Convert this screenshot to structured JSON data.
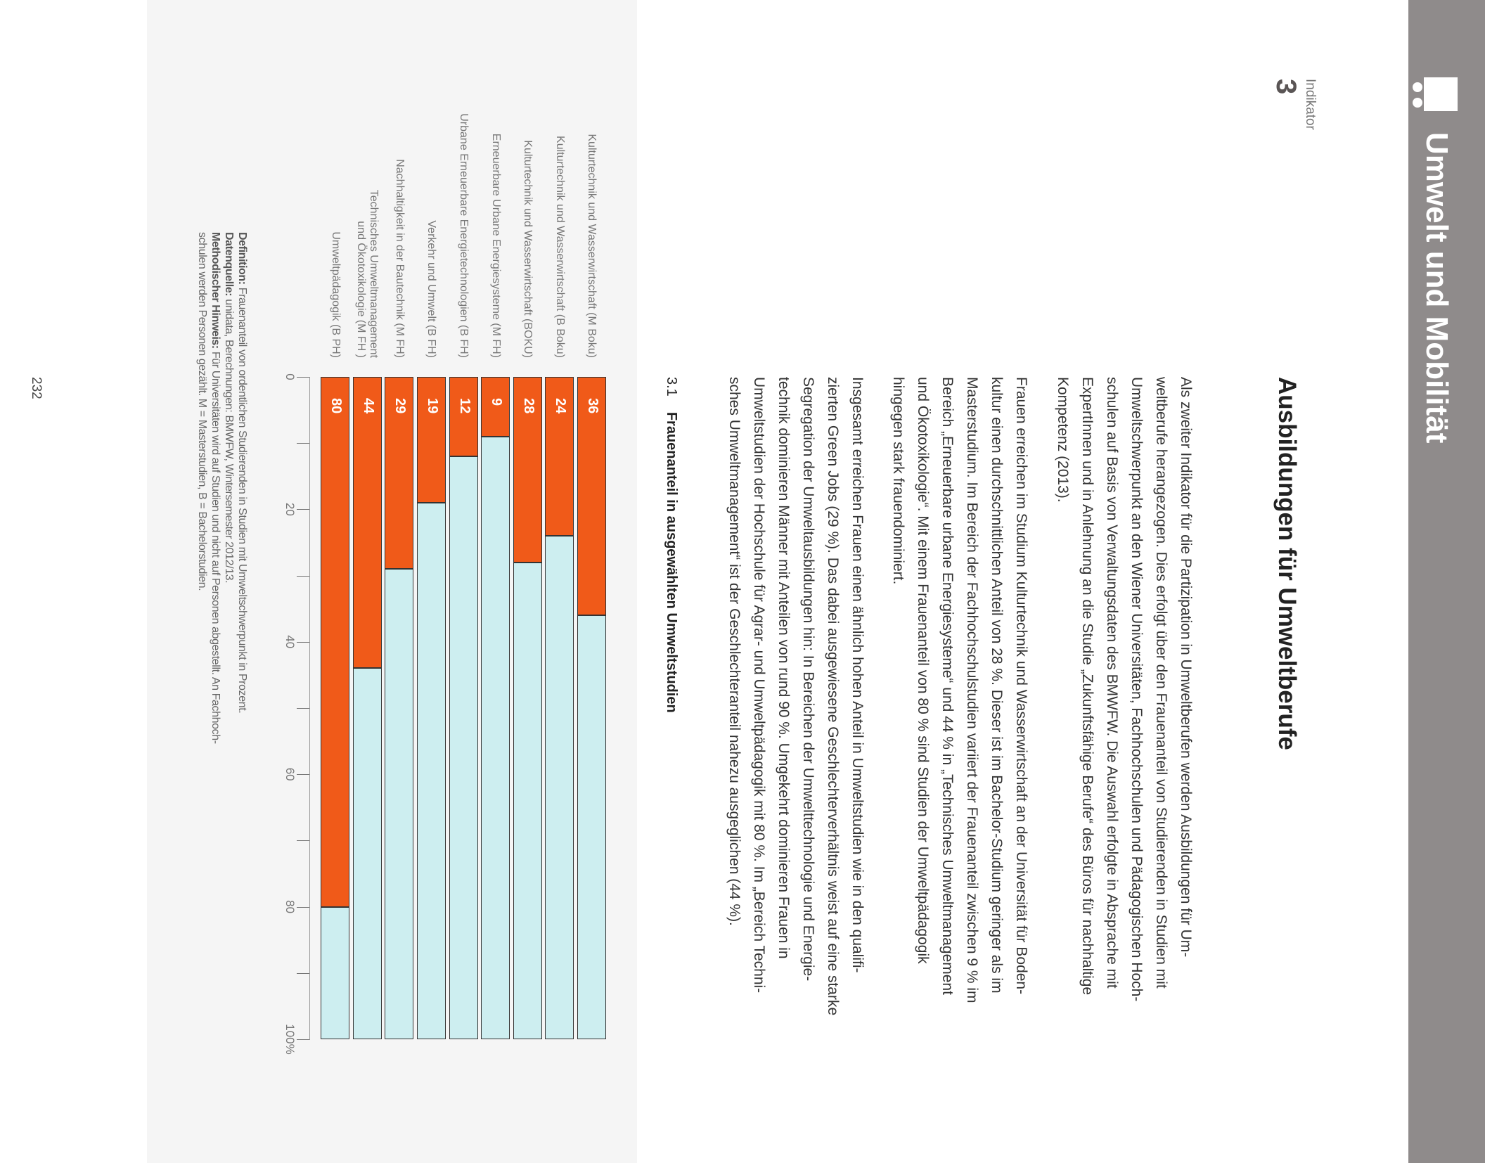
{
  "header": {
    "section_title": "Umwelt und Mobilität",
    "band_color": "#8f8b8b",
    "icon": "indicator-logo-icon",
    "indicator_label": "Indikator",
    "indicator_number": "3"
  },
  "heading": "Ausbildungen für Umweltberufe",
  "paragraphs": [
    {
      "lines": [
        "Als zweiter Indikator für die Partizipation in Umweltberufen werden Ausbildungen für Um-",
        "weltberufe herangezogen. Dies erfolgt über den Frauenanteil von Studierenden in Studien mit",
        "Umweltschwerpunkt an den Wiener Universitäten, Fachhochschulen und Pädagogischen Hoch-",
        "schulen auf Basis von Verwaltungsdaten des BMWFW. Die Auswahl erfolgte in Absprache mit",
        "ExpertInnen und in Anlehnung an die Studie „Zukunftsfähige Berufe“ des Büros für nachhaltige",
        "Kompetenz (2013)."
      ]
    },
    {
      "lines": [
        "Frauen erreichen im Studium Kulturtechnik und Wasserwirtschaft an der Universität für Boden-",
        "kultur einen durchschnittlichen Anteil von 28 %. Dieser ist im Bachelor-Studium geringer als im",
        "Masterstudium. Im Bereich der Fachhochschulstudien variiert der Frauenanteil zwischen 9 % im",
        "Bereich „Erneuerbare urbane Energiesysteme“ und 44 % in „Technisches Umweltmanagement",
        "und Ökotoxikologie“. Mit einem Frauenanteil von 80 % sind Studien der Umweltpädagogik",
        "hingegen stark frauendominiert."
      ]
    },
    {
      "lines": [
        "Insgesamt erreichen Frauen einen ähnlich hohen Anteil in Umweltstudien wie in den qualifi-",
        "zierten Green Jobs (29 %). Das dabei ausgewiesene Geschlechterverhältnis weist auf eine starke",
        "Segregation der Umweltausbildungen hin: In Bereichen der Umwelttechnologie und Energie-",
        "technik dominieren Männer mit Anteilen von rund 90 %. Umgekehrt dominieren Frauen in",
        "Umweltstudien der Hochschule für Agrar- und Umweltpädagogik mit 80 %. Im „Bereich Techni-",
        "sches Umweltmanagement“ ist der Geschlechteranteil nahezu ausgeglichen (44 %)."
      ]
    }
  ],
  "figure": {
    "number": "3.1",
    "title": "Frauenanteil in ausgewählten Umweltstudien"
  },
  "chart_data": {
    "type": "bar",
    "orientation": "horizontal",
    "stacked": true,
    "categories": [
      [
        "Kulturtechnik und  Wasserwirtschaft (M Boku)"
      ],
      [
        "Kulturtechnik und Wasserwirtschaft (B Boku)"
      ],
      [
        "Kulturtechnik und Wasserwirtschaft (BOKU)"
      ],
      [
        "Erneuerbare Urbane Energiesysteme (M FH)"
      ],
      [
        "Urbane Erneuerbare Energietechnologien (B FH)"
      ],
      [
        "Verkehr und Umwelt (B FH)"
      ],
      [
        "Nachhaltigkeit in der Bautechnik (M FH)"
      ],
      [
        "Technisches Umweltmanagement",
        "und Ökotoxikologie (M FH )"
      ],
      [
        "Umweltpädagogik (B PH)"
      ]
    ],
    "values": [
      36,
      24,
      28,
      9,
      12,
      19,
      29,
      44,
      80
    ],
    "remainder_values": [
      64,
      76,
      72,
      91,
      88,
      81,
      71,
      56,
      20
    ],
    "colors": {
      "value": "#f05a19",
      "remainder": "#cdeef0"
    },
    "xlim": [
      0,
      100
    ],
    "xticks": [
      "0",
      "20",
      "40",
      "60",
      "80",
      "100%"
    ],
    "minor_ticks_every": 10,
    "data_labels": true,
    "grid": false
  },
  "notes": {
    "definition_label": "Definition:",
    "definition": " Frauenanteil von ordentlichen Studierenden in Studien mit Umweltschwerpunkt in Prozent.",
    "source_label": "Datenquelle:",
    "source": " unidata, Berechnungen: BMWFW, Wintersemester 2012/13.",
    "method_label": "Methodischer Hinweis:",
    "method_line1": " Für Universitäten wird auf Studien und nicht auf Personen abgestellt. An Fachhoch-",
    "method_line2": "schulen werden Personen gezählt. M = Masterstudien, B = Bachelorstudien."
  },
  "page_number": "232"
}
